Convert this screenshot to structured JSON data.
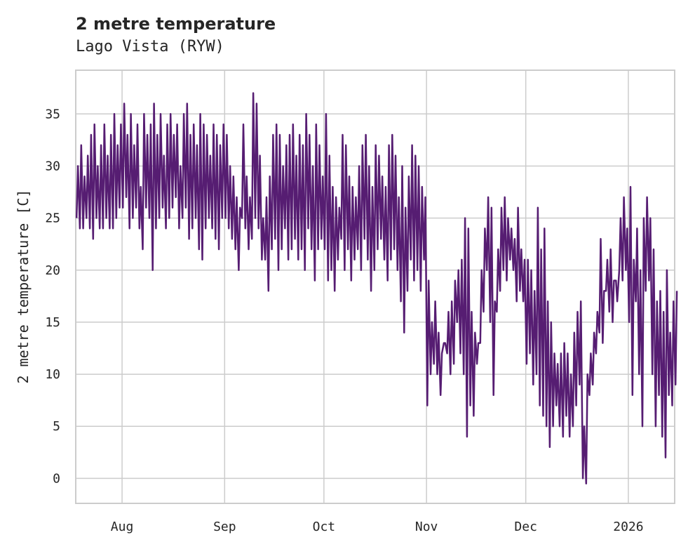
{
  "chart_data": {
    "type": "line",
    "title": "2 metre temperature",
    "subtitle": "Lago Vista (RYW)",
    "xlabel": "",
    "ylabel": "2 metre temperature [C]",
    "ylim": [
      -2.4,
      39.2
    ],
    "xlim": [
      "2025-07-18",
      "2026-01-15"
    ],
    "yticks": [
      0,
      5,
      10,
      15,
      20,
      25,
      30,
      35
    ],
    "xticks": [
      {
        "date": "2025-08-01",
        "label": "Aug"
      },
      {
        "date": "2025-09-01",
        "label": "Sep"
      },
      {
        "date": "2025-10-01",
        "label": "Oct"
      },
      {
        "date": "2025-11-01",
        "label": "Nov"
      },
      {
        "date": "2025-12-01",
        "label": "Dec"
      },
      {
        "date": "2026-01-01",
        "label": "2026"
      }
    ],
    "grid": true,
    "line_color": "#561d72",
    "series": [
      {
        "name": "2 metre temperature",
        "start_date": "2025-07-18",
        "note_daily": "daily minimum and maximum, one pair per day",
        "daily_max": [
          30,
          32,
          29,
          31,
          33,
          34,
          30,
          32,
          34,
          31,
          33,
          35,
          32,
          34,
          36,
          33,
          35,
          32,
          34,
          28,
          35,
          33,
          34,
          36,
          33,
          35,
          31,
          34,
          35,
          33,
          34,
          30,
          35,
          36,
          33,
          34,
          32,
          35,
          34,
          33,
          31,
          34,
          33,
          32,
          34,
          33,
          30,
          29,
          27,
          26,
          34,
          29,
          27,
          37,
          36,
          31,
          25,
          27,
          29,
          33,
          34,
          33,
          30,
          32,
          33,
          34,
          31,
          33,
          32,
          35,
          33,
          30,
          34,
          32,
          29,
          35,
          31,
          28,
          27,
          26,
          33,
          32,
          29,
          28,
          27,
          30,
          32,
          33,
          30,
          28,
          32,
          31,
          29,
          28,
          32,
          33,
          31,
          27,
          30,
          26,
          29,
          32,
          31,
          30,
          28,
          27,
          19,
          15,
          17,
          14,
          12,
          13,
          16,
          17,
          19,
          20,
          21,
          25,
          24,
          16,
          14,
          13,
          20,
          24,
          27,
          26,
          17,
          22,
          26,
          27,
          25,
          24,
          23,
          26,
          22,
          21,
          21,
          20,
          18,
          26,
          22,
          24,
          17,
          15,
          12,
          11,
          12,
          13,
          12,
          10,
          14,
          16,
          17,
          5,
          10,
          12,
          14,
          16,
          23,
          18,
          21,
          22,
          19,
          17,
          25,
          27,
          24,
          28,
          21,
          24,
          20,
          25,
          27,
          25,
          22,
          17,
          18,
          16,
          20,
          14,
          17,
          18
        ],
        "daily_min": [
          25,
          24,
          24,
          25,
          24,
          23,
          25,
          24,
          24,
          25,
          24,
          24,
          25,
          26,
          26,
          27,
          24,
          25,
          26,
          24,
          22,
          26,
          25,
          20,
          24,
          25,
          26,
          24,
          25,
          26,
          27,
          24,
          25,
          26,
          23,
          24,
          25,
          22,
          21,
          24,
          25,
          24,
          23,
          22,
          25,
          25,
          24,
          23,
          22,
          20,
          25,
          24,
          22,
          23,
          25,
          24,
          21,
          21,
          18,
          22,
          23,
          20,
          22,
          24,
          21,
          22,
          23,
          21,
          22,
          20,
          24,
          22,
          19,
          22,
          23,
          22,
          19,
          20,
          18,
          21,
          23,
          20,
          22,
          19,
          21,
          22,
          20,
          23,
          21,
          18,
          20,
          22,
          23,
          21,
          19,
          21,
          22,
          20,
          17,
          14,
          18,
          21,
          19,
          20,
          18,
          21,
          7,
          10,
          11,
          10,
          8,
          13,
          12,
          10,
          11,
          15,
          12,
          10,
          4,
          7,
          6,
          11,
          13,
          16,
          20,
          15,
          8,
          16,
          18,
          20,
          19,
          21,
          20,
          17,
          18,
          17,
          11,
          12,
          9,
          10,
          7,
          6,
          5,
          3,
          5,
          7,
          5,
          4,
          6,
          4,
          5,
          7,
          9,
          0,
          -0.5,
          8,
          9,
          12,
          14,
          13,
          18,
          16,
          15,
          19,
          20,
          19,
          20,
          15,
          8,
          17,
          10,
          5,
          18,
          19,
          10,
          5,
          8,
          4,
          2,
          8,
          7,
          9
        ]
      }
    ]
  }
}
